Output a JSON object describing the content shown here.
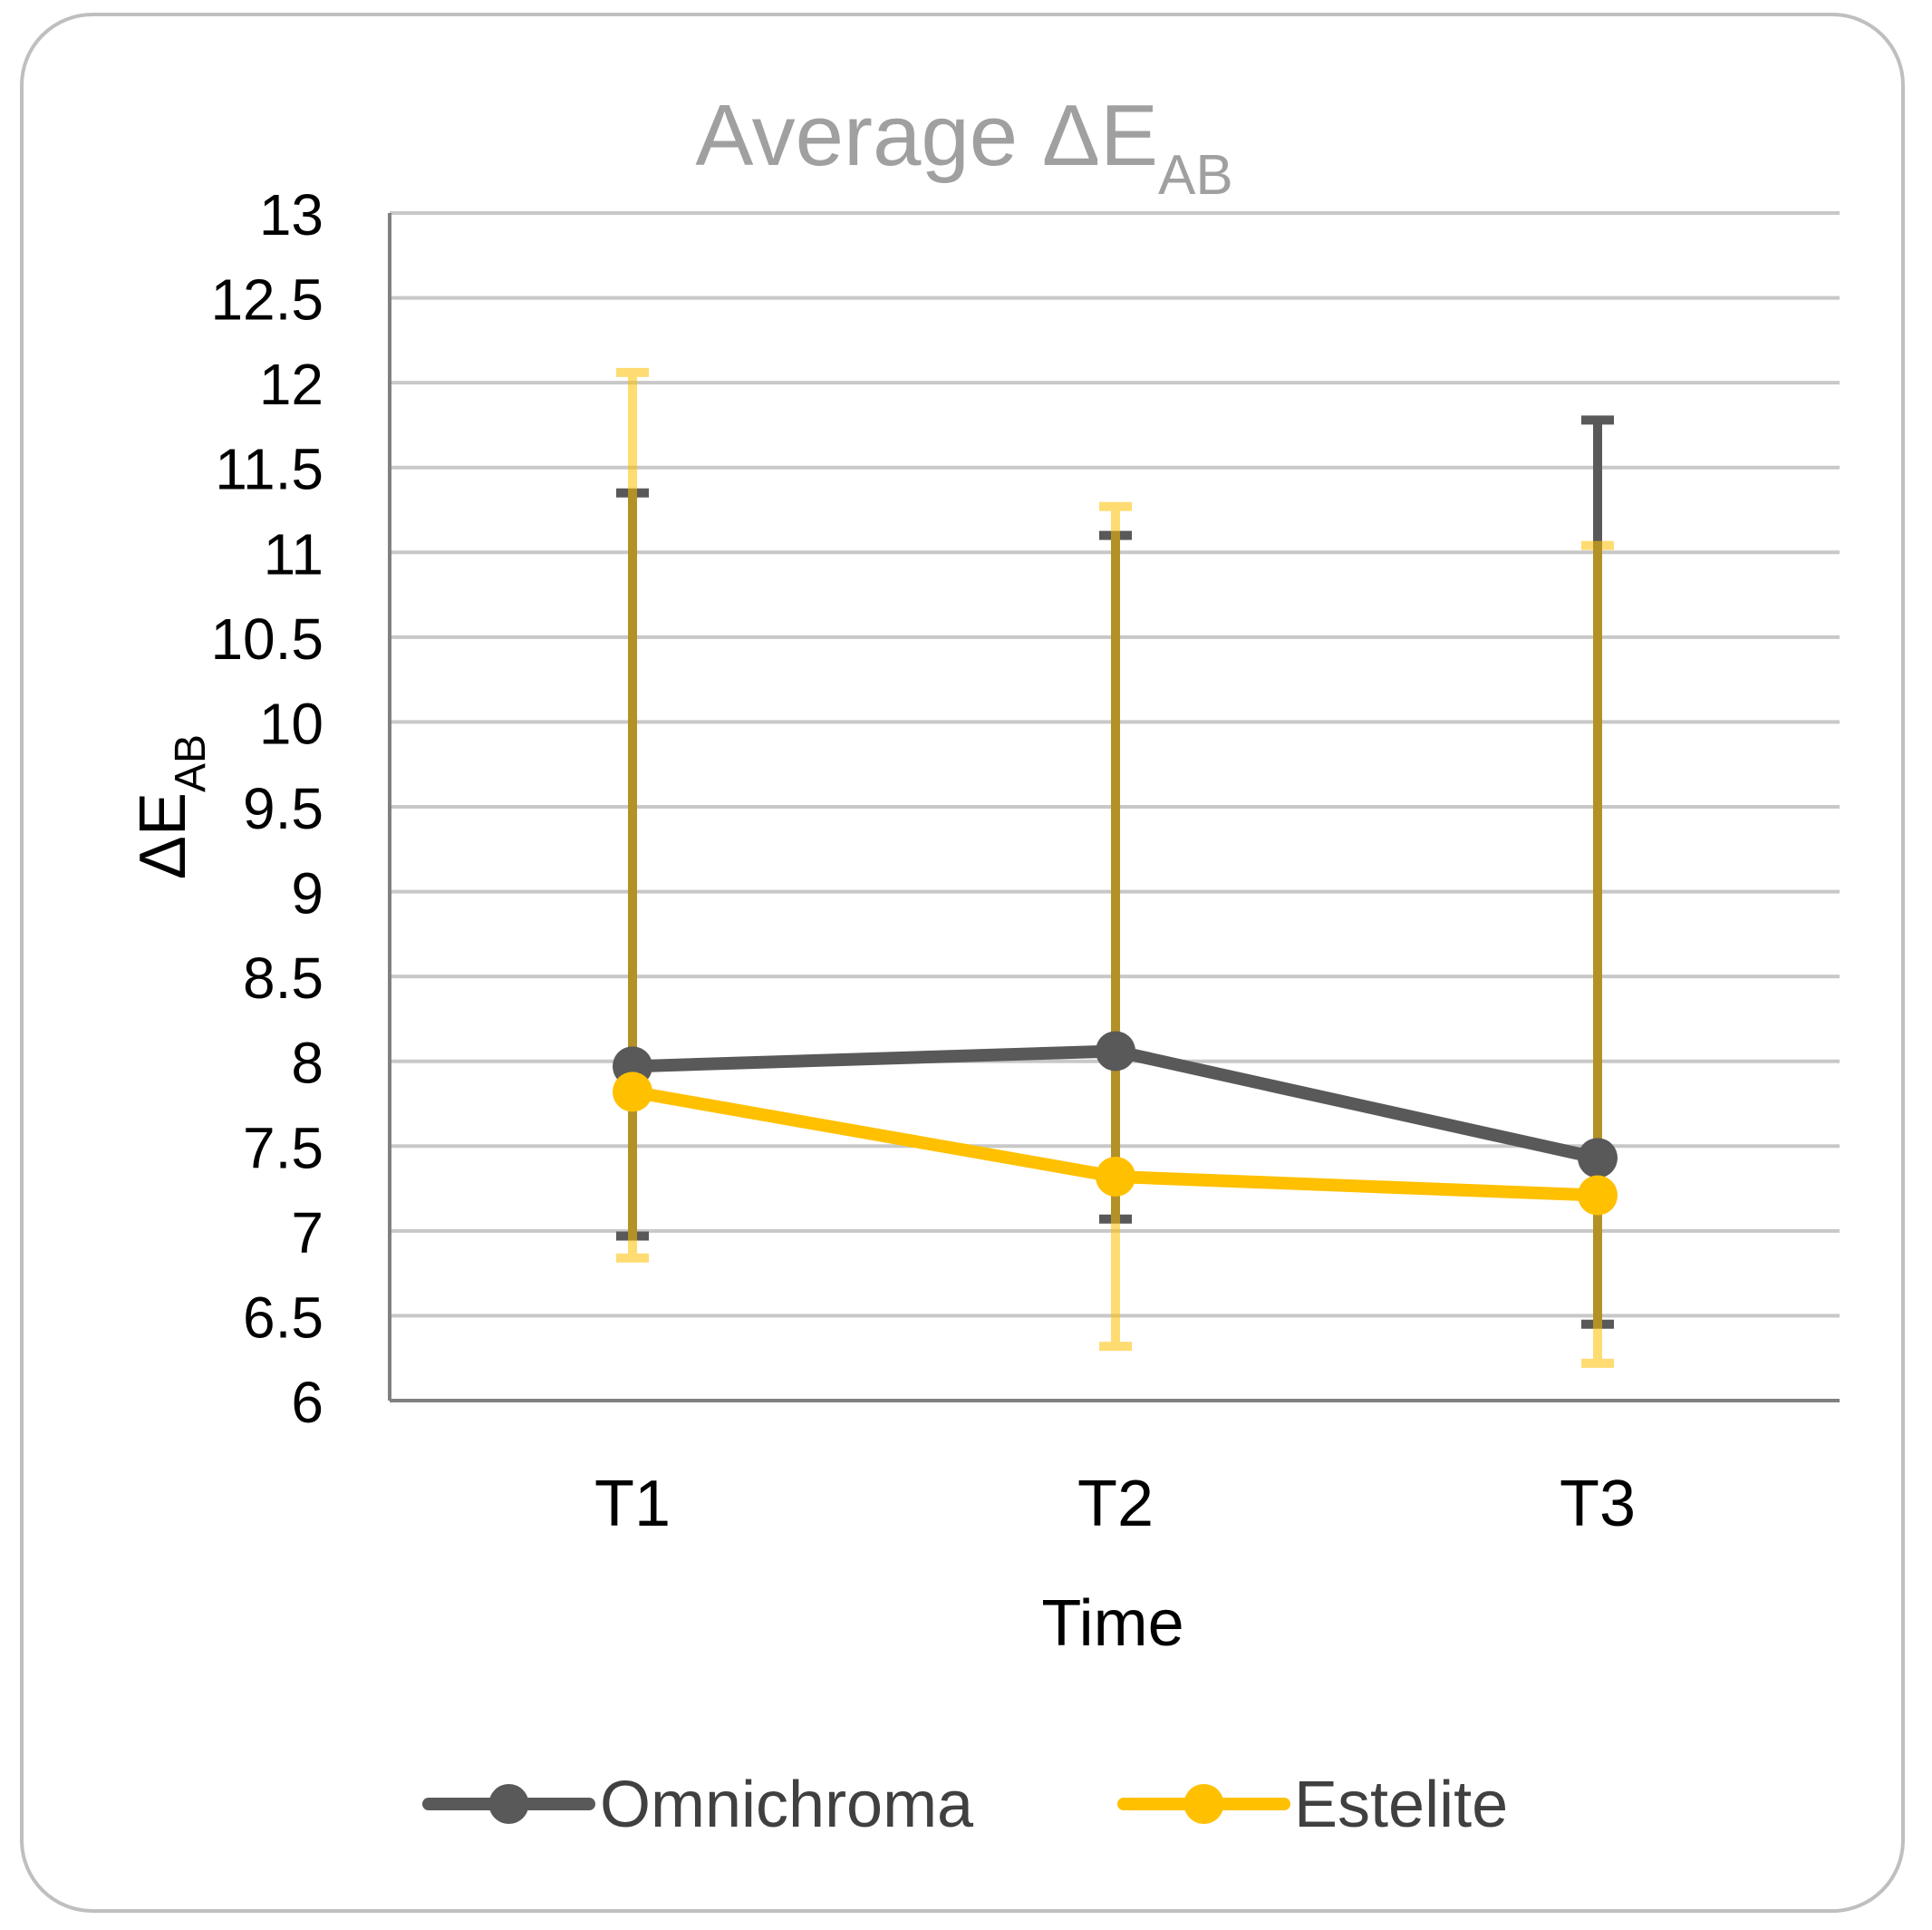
{
  "chart_data": {
    "type": "line",
    "title": {
      "main": "Average ΔE",
      "sub": "AB"
    },
    "xlabel": "Time",
    "ylabel": {
      "main": "ΔE",
      "sub": "AB"
    },
    "categories": [
      "T1",
      "T2",
      "T3"
    ],
    "ylim": [
      6,
      13
    ],
    "yticks": [
      6,
      6.5,
      7,
      7.5,
      8,
      8.5,
      9,
      9.5,
      10,
      10.5,
      11,
      11.5,
      12,
      12.5,
      13
    ],
    "ytick_labels": [
      "6",
      "6.5",
      "7",
      "7.5",
      "8",
      "8.5",
      "9",
      "9.5",
      "10",
      "10.5",
      "11",
      "11.5",
      "12",
      "12.5",
      "13"
    ],
    "grid": true,
    "legend_position": "bottom",
    "series": [
      {
        "name": "Omnichroma",
        "color": "#595959",
        "values": [
          7.97,
          8.06,
          7.43
        ],
        "error_low": [
          6.97,
          7.07,
          6.45
        ],
        "error_high": [
          11.35,
          11.1,
          11.78
        ]
      },
      {
        "name": "Estelite",
        "color": "#ffc000",
        "values": [
          7.82,
          7.32,
          7.21
        ],
        "error_low": [
          6.84,
          6.32,
          6.22
        ],
        "error_high": [
          12.06,
          11.27,
          11.04
        ]
      }
    ]
  }
}
